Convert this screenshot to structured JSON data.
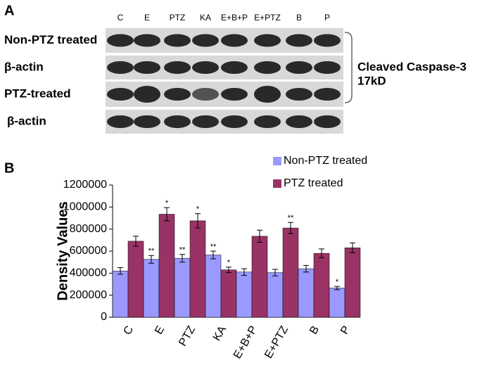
{
  "panel_a": {
    "label": "A",
    "lanes": [
      "C",
      "E",
      "PTZ",
      "KA",
      "E+B+P",
      "E+PTZ",
      "B",
      "P"
    ],
    "rows": [
      "Non-PTZ treated",
      "β-actin",
      "PTZ-treated",
      "β-actin"
    ],
    "target": "Cleaved Caspase-3",
    "size": "17kD"
  },
  "panel_b_label": "B",
  "chart_data": {
    "type": "bar",
    "y_label": "Density Values",
    "categories": [
      "C",
      "E",
      "PTZ",
      "KA",
      "E+B+P",
      "E+PTZ",
      "B",
      "P"
    ],
    "series": [
      {
        "name": "Non-PTZ treated",
        "color": "#9999ff",
        "values": [
          420000,
          525000,
          535000,
          565000,
          410000,
          405000,
          440000,
          265000
        ],
        "errors": [
          30000,
          35000,
          35000,
          35000,
          30000,
          30000,
          30000,
          15000
        ],
        "stars": [
          null,
          "**",
          "**",
          "**",
          null,
          null,
          null,
          "*"
        ]
      },
      {
        "name": "PTZ treated",
        "color": "#993366",
        "values": [
          690000,
          935000,
          875000,
          430000,
          735000,
          810000,
          580000,
          630000
        ],
        "errors": [
          45000,
          60000,
          65000,
          25000,
          55000,
          50000,
          40000,
          45000
        ],
        "stars": [
          null,
          "*",
          "*",
          "*",
          null,
          "**",
          null,
          null
        ]
      }
    ],
    "ylim": [
      0,
      1200000
    ],
    "yticks": [
      0,
      200000,
      400000,
      600000,
      800000,
      1000000,
      1200000
    ],
    "grid": false
  }
}
